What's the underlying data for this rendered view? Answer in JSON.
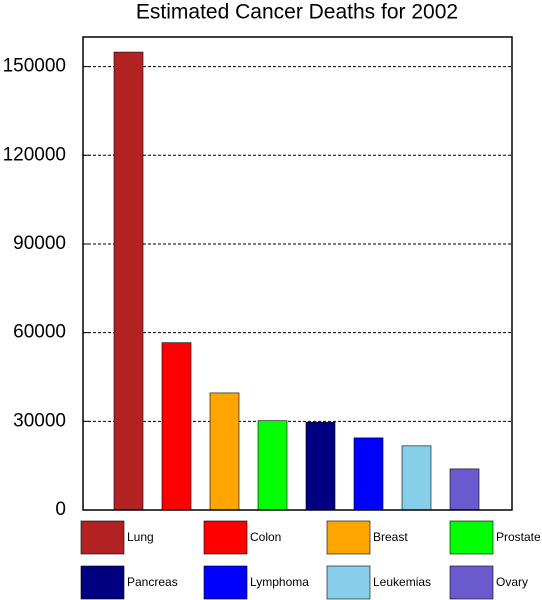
{
  "chart_data": {
    "type": "bar",
    "title": "Estimated Cancer Deaths for 2002",
    "categories": [
      "Lung",
      "Colon",
      "Breast",
      "Prostate",
      "Pancreas",
      "Lymphoma",
      "Leukemias",
      "Ovary"
    ],
    "values": [
      154900,
      56600,
      39600,
      30200,
      29700,
      24400,
      21700,
      13900
    ],
    "colors": [
      "#b22222",
      "#ff0000",
      "#ffa500",
      "#00ff00",
      "#000080",
      "#0000ff",
      "#87ceeb",
      "#6a5acd"
    ],
    "ylim": [
      0,
      160000
    ],
    "yticks": [
      0,
      30000,
      60000,
      90000,
      120000,
      150000
    ],
    "grid": true
  }
}
